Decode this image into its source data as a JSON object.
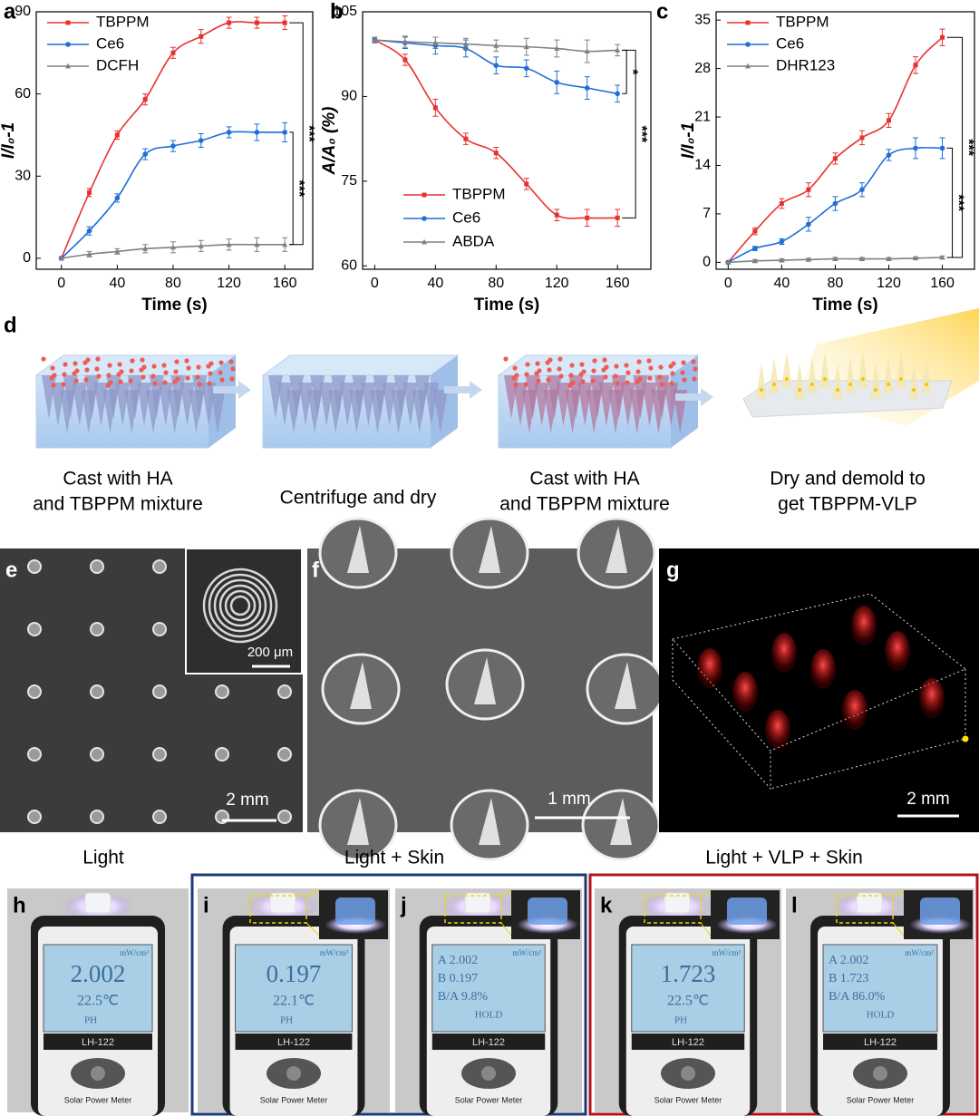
{
  "chart_data": [
    {
      "type": "line",
      "panel": "a",
      "xlabel": "Time (s)",
      "ylabel": "I/I₀-1",
      "x": [
        0,
        20,
        40,
        60,
        80,
        100,
        120,
        140,
        160
      ],
      "xlim": [
        -18,
        180
      ],
      "ylim": [
        -4,
        90
      ],
      "xticks": [
        0,
        40,
        80,
        120,
        160
      ],
      "yticks": [
        0,
        30,
        60,
        90
      ],
      "legend": "upper left",
      "series": [
        {
          "name": "TBPPM",
          "color": "#e8312f",
          "values": [
            0,
            24,
            45,
            58,
            75,
            81,
            86,
            86,
            86
          ],
          "errors": [
            0,
            1.5,
            1.5,
            2,
            2,
            2.5,
            2,
            2,
            2.5
          ]
        },
        {
          "name": "Ce6",
          "color": "#1f6fd6",
          "values": [
            0,
            10,
            22,
            38,
            41,
            43,
            46,
            46,
            46
          ],
          "errors": [
            0,
            1.5,
            1.5,
            2,
            2,
            2.5,
            2,
            3,
            3.5
          ]
        },
        {
          "name": "DCFH",
          "color": "#808080",
          "values": [
            0,
            1.5,
            2.5,
            3.5,
            4,
            4.5,
            5,
            5,
            5
          ],
          "errors": [
            0,
            1,
            1,
            1.5,
            2,
            2,
            2,
            2.5,
            2.5
          ]
        }
      ],
      "annotations": [
        "***",
        "***"
      ]
    },
    {
      "type": "line",
      "panel": "b",
      "xlabel": "Time (s)",
      "ylabel": "A/A₀ (%)",
      "x": [
        0,
        20,
        40,
        60,
        80,
        100,
        120,
        140,
        160
      ],
      "xlim": [
        -8,
        182
      ],
      "ylim": [
        59.4,
        105
      ],
      "xticks": [
        0,
        40,
        80,
        120,
        160
      ],
      "yticks": [
        60,
        75,
        90,
        105
      ],
      "legend": "lower left",
      "series": [
        {
          "name": "TBPPM",
          "color": "#e8312f",
          "values": [
            100,
            96.5,
            88,
            82.5,
            80,
            74.5,
            69,
            68.5,
            68.5
          ],
          "errors": [
            0.5,
            1,
            1.5,
            1,
            1,
            1,
            1,
            1.5,
            1.5
          ]
        },
        {
          "name": "Ce6",
          "color": "#1f6fd6",
          "values": [
            100,
            99.5,
            99,
            98.5,
            95.5,
            95,
            92.5,
            91.5,
            90.5
          ],
          "errors": [
            0.5,
            1,
            1.5,
            1.5,
            1.5,
            1.5,
            2,
            2,
            1.5
          ]
        },
        {
          "name": "ABDA",
          "color": "#808080",
          "values": [
            100,
            99.7,
            99.5,
            99.3,
            99,
            98.8,
            98.5,
            98,
            98.2
          ],
          "errors": [
            0.5,
            1,
            1,
            1,
            1,
            1.5,
            1.5,
            2,
            1
          ]
        }
      ],
      "annotations": [
        "*",
        "***"
      ]
    },
    {
      "type": "line",
      "panel": "c",
      "xlabel": "Time (s)",
      "ylabel": "I/I₀-1",
      "x": [
        0,
        20,
        40,
        60,
        80,
        100,
        120,
        140,
        160
      ],
      "xlim": [
        -9,
        184
      ],
      "ylim": [
        -1,
        36.2
      ],
      "xticks": [
        0,
        40,
        80,
        120,
        160
      ],
      "yticks": [
        0,
        7,
        14,
        21,
        28,
        35
      ],
      "legend": "upper left",
      "series": [
        {
          "name": "TBPPM",
          "color": "#e8312f",
          "values": [
            0,
            4.5,
            8.5,
            10.5,
            15,
            18,
            20.5,
            28.5,
            32.5
          ],
          "errors": [
            0,
            0.5,
            0.7,
            1,
            0.8,
            1,
            1,
            1.2,
            1.2
          ]
        },
        {
          "name": "Ce6",
          "color": "#1f6fd6",
          "values": [
            0,
            2,
            3,
            5.5,
            8.5,
            10.5,
            15.5,
            16.5,
            16.5
          ],
          "errors": [
            0,
            0.3,
            0.4,
            1,
            1,
            1,
            0.8,
            1.5,
            1.5
          ]
        },
        {
          "name": "DHR123",
          "color": "#808080",
          "values": [
            0,
            0.2,
            0.3,
            0.4,
            0.5,
            0.5,
            0.5,
            0.6,
            0.7
          ],
          "errors": [
            0,
            0.2,
            0.2,
            0.2,
            0.2,
            0.2,
            0.2,
            0.2,
            0.2
          ]
        }
      ],
      "annotations": [
        "***",
        "***"
      ]
    }
  ],
  "schematic": {
    "panel": "d",
    "steps": [
      [
        "Cast with HA",
        "and TBPPM mixture"
      ],
      [
        "Centrifuge and dry"
      ],
      [
        "Cast with HA",
        "and TBPPM mixture"
      ],
      [
        "Dry and demold to",
        "get TBPPM-VLP"
      ]
    ]
  },
  "micrographs": [
    {
      "panel": "e",
      "scale_bar": "2 mm",
      "inset_scale_bar": "200 μm"
    },
    {
      "panel": "f",
      "scale_bar": "1 mm"
    },
    {
      "panel": "g",
      "scale_bar": "2 mm"
    }
  ],
  "photo_groups": [
    "Light",
    "Light + Skin",
    "Light + VLP + Skin"
  ],
  "meter": {
    "model": "LH-122",
    "name": "Solar Power Meter",
    "unit": "mW/cm²"
  },
  "photos": [
    {
      "panel": "h",
      "display": [
        "2.002",
        "22.5℃",
        "PH"
      ]
    },
    {
      "panel": "i",
      "display": [
        "0.197",
        "22.1℃",
        "PH"
      ]
    },
    {
      "panel": "j",
      "display": [
        "A 2.002",
        "B 0.197",
        "B/A  9.8%",
        "HOLD"
      ]
    },
    {
      "panel": "k",
      "display": [
        "1.723",
        "22.5℃",
        "PH"
      ]
    },
    {
      "panel": "l",
      "display": [
        "A 2.002",
        "B 1.723",
        "B/A 86.0%",
        "HOLD"
      ]
    }
  ]
}
